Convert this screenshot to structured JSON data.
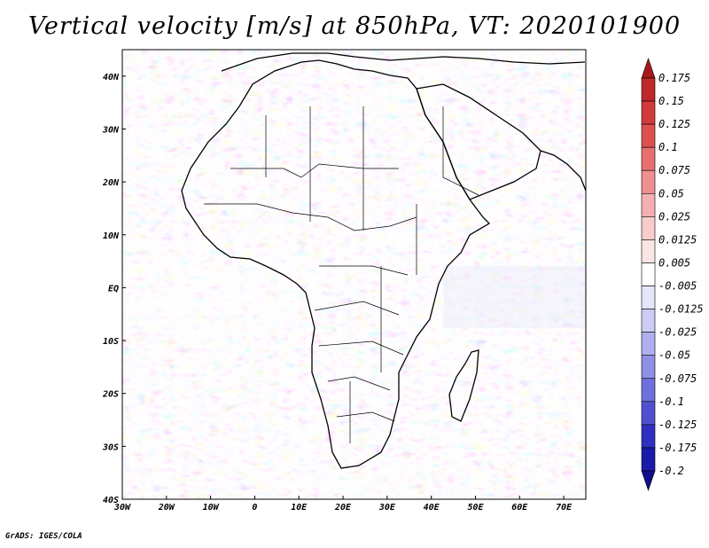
{
  "title": "Vertical velocity [m/s] at 850hPa, VT: 2020101900",
  "footer": "GrADS: IGES/COLA",
  "map": {
    "lon_labels": [
      "30W",
      "20W",
      "10W",
      "0",
      "10E",
      "20E",
      "30E",
      "40E",
      "50E",
      "60E",
      "70E"
    ],
    "lat_labels": [
      "40N",
      "30N",
      "20N",
      "10N",
      "EQ",
      "10S",
      "20S",
      "30S",
      "40S"
    ],
    "lon_range": [
      -30,
      75
    ],
    "lat_range": [
      -40,
      45
    ],
    "field": "vertical velocity"
  },
  "colorbar": {
    "levels": [
      "0.175",
      "0.15",
      "0.125",
      "0.1",
      "0.075",
      "0.05",
      "0.025",
      "0.0125",
      "0.005",
      "-0.005",
      "-0.0125",
      "-0.025",
      "-0.05",
      "-0.075",
      "-0.1",
      "-0.125",
      "-0.175",
      "-0.2"
    ],
    "colors": [
      "#a51a1a",
      "#c02828",
      "#d23a3a",
      "#de5050",
      "#e67070",
      "#ee9090",
      "#f4b0b0",
      "#f8cccc",
      "#fbe4e4",
      "#ffffff",
      "#e6e6fb",
      "#ccccf6",
      "#b0b0f0",
      "#9090e6",
      "#7070dc",
      "#5050d0",
      "#3030c0",
      "#1a1aa8",
      "#10108c"
    ]
  }
}
